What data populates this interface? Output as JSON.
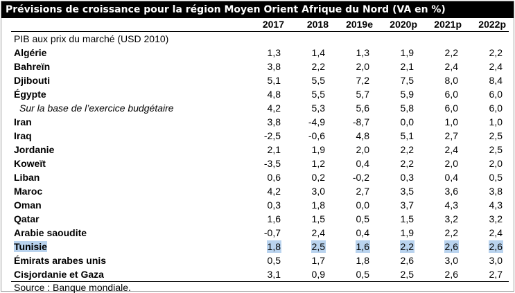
{
  "title": "Prévisions de croissance pour la région Moyen Orient Afrique du Nord (VA en %)",
  "columns": [
    "2017",
    "2018",
    "2019e",
    "2020p",
    "2021p",
    "2022p"
  ],
  "subheader": "PIB aux prix du marché (USD 2010)",
  "rows": [
    {
      "label": "Algérie",
      "values": [
        "1,3",
        "1,4",
        "1,3",
        "1,9",
        "2,2",
        "2,2"
      ]
    },
    {
      "label": "Bahreïn",
      "values": [
        "3,8",
        "2,2",
        "2,0",
        "2,1",
        "2,4",
        "2,4"
      ]
    },
    {
      "label": "Djibouti",
      "values": [
        "5,1",
        "5,5",
        "7,2",
        "7,5",
        "8,0",
        "8,4"
      ]
    },
    {
      "label": "Égypte",
      "values": [
        "4,8",
        "5,5",
        "5,7",
        "5,9",
        "6,0",
        "6,0"
      ]
    },
    {
      "label": "Sur la base de l’exercice budgétaire",
      "values": [
        "4,2",
        "5,3",
        "5,6",
        "5,8",
        "6,0",
        "6,0"
      ]
    },
    {
      "label": "Iran",
      "values": [
        "3,8",
        "-4,9",
        "-8,7",
        "0,0",
        "1,0",
        "1,0"
      ]
    },
    {
      "label": "Iraq",
      "values": [
        "-2,5",
        "-0,6",
        "4,8",
        "5,1",
        "2,7",
        "2,5"
      ]
    },
    {
      "label": "Jordanie",
      "values": [
        "2,1",
        "1,9",
        "2,0",
        "2,2",
        "2,4",
        "2,5"
      ]
    },
    {
      "label": "Koweït",
      "values": [
        "-3,5",
        "1,2",
        "0,4",
        "2,2",
        "2,0",
        "2,0"
      ]
    },
    {
      "label": "Liban",
      "values": [
        "0,6",
        "0,2",
        "-0,2",
        "0,3",
        "0,4",
        "0,5"
      ]
    },
    {
      "label": "Maroc",
      "values": [
        "4,2",
        "3,0",
        "2,7",
        "3,5",
        "3,6",
        "3,8"
      ]
    },
    {
      "label": "Oman",
      "values": [
        "0,3",
        "1,8",
        "0,0",
        "3,7",
        "4,3",
        "4,3"
      ]
    },
    {
      "label": "Qatar",
      "values": [
        "1,6",
        "1,5",
        "0,5",
        "1,5",
        "3,2",
        "3,2"
      ]
    },
    {
      "label": "Arabie saoudite",
      "values": [
        "-0,7",
        "2,4",
        "0,4",
        "1,9",
        "2,2",
        "2,4"
      ]
    },
    {
      "label": "Tunisie",
      "values": [
        "1,8",
        "2,5",
        "1,6",
        "2,2",
        "2,6",
        "2,6"
      ]
    },
    {
      "label": "Émirats arabes unis",
      "values": [
        "0,5",
        "1,7",
        "1,8",
        "2,6",
        "3,0",
        "3,0"
      ]
    },
    {
      "label": "Cisjordanie et Gaza",
      "values": [
        "3,1",
        "0,9",
        "0,5",
        "2,5",
        "2,6",
        "2,7"
      ]
    }
  ],
  "source": "Source : Banque mondiale.",
  "highlight_color": "#b9d3ee"
}
